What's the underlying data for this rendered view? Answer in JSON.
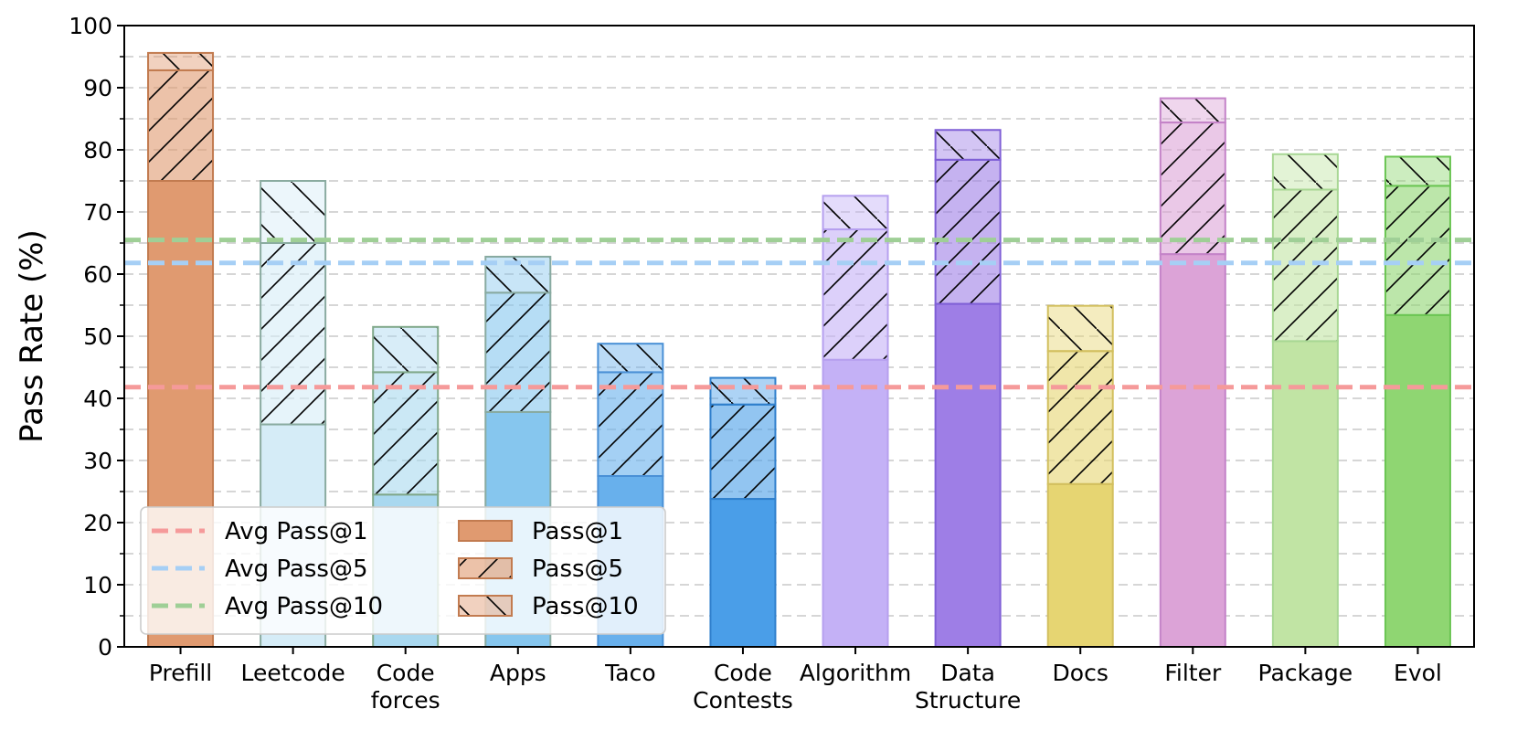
{
  "chart_data": {
    "type": "bar",
    "stacked_overlay": true,
    "title": "",
    "xlabel": "",
    "ylabel": "Pass Rate (%)",
    "ylim": [
      0,
      100
    ],
    "yticks": [
      0,
      10,
      20,
      30,
      40,
      50,
      60,
      70,
      80,
      90,
      100
    ],
    "grid": "horizontal dashed at every 5",
    "categories": [
      [
        "Prefill"
      ],
      [
        "Leetcode"
      ],
      [
        "Code",
        "forces"
      ],
      [
        "Apps"
      ],
      [
        "Taco"
      ],
      [
        "Code",
        "Contests"
      ],
      [
        "Algorithm"
      ],
      [
        "Data",
        "Structure"
      ],
      [
        "Docs"
      ],
      [
        "Filter"
      ],
      [
        "Package"
      ],
      [
        "Evol"
      ]
    ],
    "colors": [
      "#e09a70",
      "#d5ecf7",
      "#a9d8ef",
      "#86c6ee",
      "#68b0ec",
      "#4a9ee8",
      "#c4b1f6",
      "#9e7ee6",
      "#e6d572",
      "#dca3d7",
      "#c1e4a4",
      "#8fd672"
    ],
    "edge_colors": [
      "#c27b50",
      "#8aaba0",
      "#80a88a",
      "#88aaa0",
      "#4a90d6",
      "#2f7fcc",
      "#b6a0ef",
      "#7f5fd6",
      "#d2bf5e",
      "#c483c8",
      "#a8d794",
      "#6bc553"
    ],
    "series": [
      {
        "name": "Pass@1",
        "values": [
          75.0,
          35.8,
          24.5,
          37.8,
          27.5,
          23.8,
          46.2,
          55.2,
          26.2,
          63.2,
          49.2,
          53.4
        ]
      },
      {
        "name": "Pass@5",
        "values": [
          92.8,
          65.0,
          44.2,
          57.0,
          44.2,
          39.0,
          67.2,
          78.4,
          47.6,
          84.4,
          73.6,
          74.2
        ]
      },
      {
        "name": "Pass@10",
        "values": [
          95.6,
          75.0,
          51.5,
          62.8,
          48.8,
          43.3,
          72.6,
          83.2,
          54.9,
          88.3,
          79.3,
          78.9
        ]
      }
    ],
    "averages": [
      {
        "name": "Avg Pass@1",
        "value": 41.8,
        "color": "#f59a9a"
      },
      {
        "name": "Avg Pass@5",
        "value": 61.8,
        "color": "#a6cff5"
      },
      {
        "name": "Avg Pass@10",
        "value": 65.5,
        "color": "#9fcf96"
      }
    ],
    "legend": {
      "position": "lower-left",
      "line_entries": [
        "Avg Pass@1",
        "Avg Pass@5",
        "Avg Pass@10"
      ],
      "patch_entries": [
        "Pass@1",
        "Pass@5",
        "Pass@10"
      ],
      "patch_color": "#e09a70",
      "patch_edge": "#c27b50"
    }
  }
}
